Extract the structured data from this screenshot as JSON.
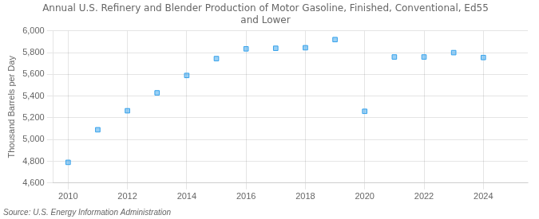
{
  "chart_data": {
    "type": "scatter",
    "title": "Annual U.S. Refinery and Blender Production of Motor Gasoline, Finished, Conventional, Ed55\nand Lower",
    "ylabel": "Thousand Barrels per Day",
    "source": "Source: U.S. Energy Information Administration",
    "x": [
      2010,
      2011,
      2012,
      2013,
      2014,
      2015,
      2016,
      2017,
      2018,
      2019,
      2020,
      2021,
      2022,
      2023,
      2024
    ],
    "values": [
      4790,
      5090,
      5265,
      5430,
      5590,
      5745,
      5835,
      5840,
      5845,
      5920,
      5260,
      5760,
      5760,
      5800,
      5755
    ],
    "marker": "square",
    "xlim": [
      2009.5,
      2025.5
    ],
    "xticks": [
      2010,
      2012,
      2014,
      2016,
      2018,
      2020,
      2022,
      2024
    ],
    "ylim": [
      4600,
      6000
    ],
    "yticks": [
      {
        "value": 4600,
        "label": "4,600"
      },
      {
        "value": 4800,
        "label": "4,800"
      },
      {
        "value": 5000,
        "label": "5,000"
      },
      {
        "value": 5200,
        "label": "5,200"
      },
      {
        "value": 5400,
        "label": "5,400"
      },
      {
        "value": 5600,
        "label": "5,600"
      },
      {
        "value": 5800,
        "label": "5,800"
      },
      {
        "value": 6000,
        "label": "6,000"
      }
    ],
    "grid": true
  }
}
